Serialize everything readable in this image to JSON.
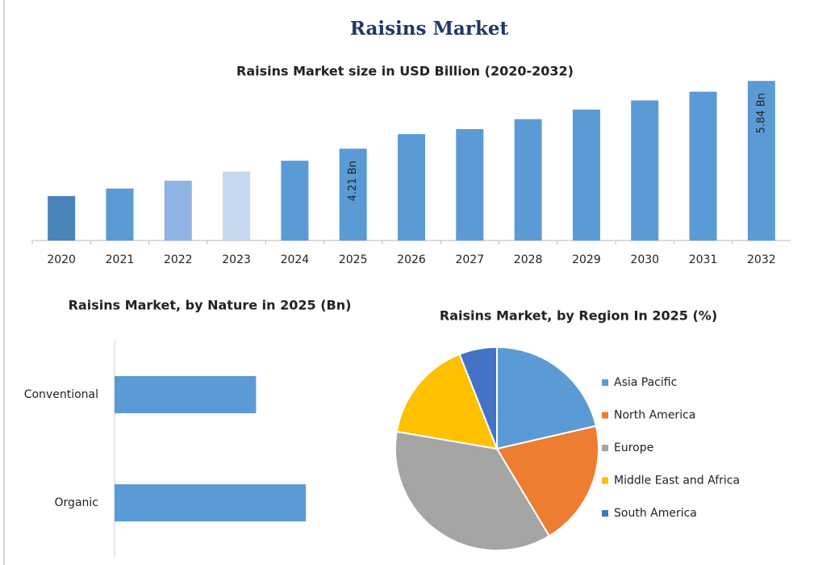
{
  "title": "Raisins Market",
  "chart_data": [
    {
      "type": "bar",
      "title": "Raisins Market size in USD Billion (2020-2032)",
      "categories": [
        "2020",
        "2021",
        "2022",
        "2023",
        "2024",
        "2025",
        "2026",
        "2027",
        "2028",
        "2029",
        "2030",
        "2031",
        "2032"
      ],
      "values": [
        3.07,
        3.25,
        3.44,
        3.66,
        3.92,
        4.21,
        4.56,
        4.68,
        4.92,
        5.15,
        5.37,
        5.58,
        5.84
      ],
      "value_labels": [
        null,
        null,
        null,
        null,
        null,
        "4.21 Bn",
        null,
        null,
        null,
        null,
        null,
        null,
        "5.84 Bn"
      ],
      "colors": [
        "#4a84bb",
        "#5b9bd5",
        "#8fb4e3",
        "#c5d8f0",
        "#5b9bd5",
        "#5b9bd5",
        "#5b9bd5",
        "#5b9bd5",
        "#5b9bd5",
        "#5b9bd5",
        "#5b9bd5",
        "#5b9bd5",
        "#5b9bd5"
      ],
      "ylim": [
        2,
        6
      ]
    },
    {
      "type": "hbar",
      "title": "Raisins Market, by Nature in 2025 (Bn)",
      "categories": [
        "Conventional",
        "Organic"
      ],
      "values": [
        1.79,
        2.42
      ],
      "color": "#5b9bd5",
      "xlim": [
        0,
        3
      ]
    },
    {
      "type": "pie",
      "title": "Raisins Market, by Region In 2025 (%)",
      "categories": [
        "Asia Pacific",
        "North America",
        "Europe",
        "Middle East and Africa",
        "South America"
      ],
      "values": [
        21.4,
        20.0,
        36.3,
        16.3,
        6.0
      ],
      "colors": [
        "#5b9bd5",
        "#ed7d31",
        "#a5a5a5",
        "#ffc000",
        "#4472c4"
      ]
    }
  ]
}
